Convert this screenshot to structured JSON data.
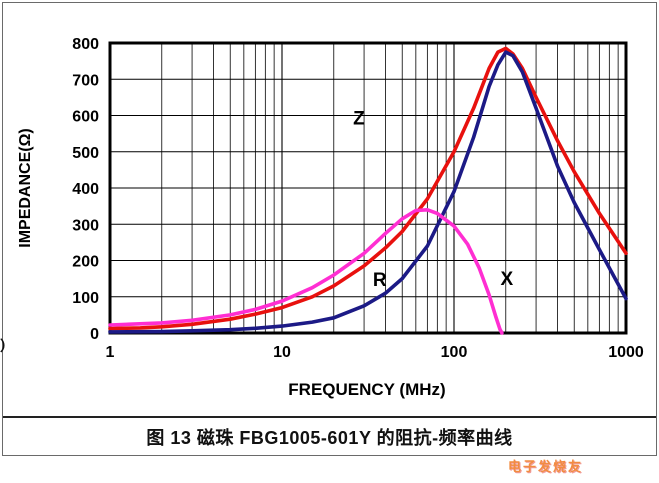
{
  "figure": {
    "caption": "图 13 磁珠 FBG1005-601Y 的阻抗-频率曲线",
    "watermark": "电子发烧友",
    "left_edge_fragment": "）"
  },
  "chart_data": {
    "type": "line",
    "title": "",
    "xlabel": "FREQUENCY (MHz)",
    "ylabel": "IMPEDANCE(Ω)",
    "x_scale": "log",
    "xlim": [
      1,
      1000
    ],
    "ylim": [
      0,
      800
    ],
    "x_ticks": [
      1,
      10,
      100,
      1000
    ],
    "y_ticks": [
      0,
      100,
      200,
      300,
      400,
      500,
      600,
      700,
      800
    ],
    "grid": true,
    "legend_position": "inline-labels",
    "series": [
      {
        "name": "Z",
        "color": "#e8110e",
        "label_at": [
          28,
          575
        ],
        "points": [
          [
            1,
            12
          ],
          [
            1.5,
            14
          ],
          [
            2,
            17
          ],
          [
            3,
            24
          ],
          [
            5,
            38
          ],
          [
            7,
            52
          ],
          [
            10,
            70
          ],
          [
            15,
            100
          ],
          [
            20,
            130
          ],
          [
            30,
            185
          ],
          [
            40,
            235
          ],
          [
            50,
            280
          ],
          [
            70,
            370
          ],
          [
            100,
            500
          ],
          [
            130,
            620
          ],
          [
            160,
            730
          ],
          [
            180,
            775
          ],
          [
            200,
            785
          ],
          [
            220,
            770
          ],
          [
            250,
            730
          ],
          [
            300,
            650
          ],
          [
            400,
            530
          ],
          [
            500,
            445
          ],
          [
            700,
            330
          ],
          [
            1000,
            220
          ]
        ]
      },
      {
        "name": "R",
        "color": "#1c1a86",
        "label_at": [
          37,
          130
        ],
        "points": [
          [
            1,
            3
          ],
          [
            2,
            4
          ],
          [
            3,
            6
          ],
          [
            5,
            9
          ],
          [
            7,
            13
          ],
          [
            10,
            19
          ],
          [
            15,
            30
          ],
          [
            20,
            42
          ],
          [
            30,
            75
          ],
          [
            40,
            110
          ],
          [
            50,
            150
          ],
          [
            70,
            240
          ],
          [
            100,
            390
          ],
          [
            130,
            540
          ],
          [
            160,
            680
          ],
          [
            180,
            740
          ],
          [
            200,
            775
          ],
          [
            220,
            765
          ],
          [
            250,
            720
          ],
          [
            300,
            620
          ],
          [
            400,
            460
          ],
          [
            500,
            360
          ],
          [
            700,
            230
          ],
          [
            1000,
            95
          ]
        ]
      },
      {
        "name": "X",
        "color": "#ff2ed2",
        "label_at": [
          203,
          132
        ],
        "points": [
          [
            1,
            22
          ],
          [
            2,
            28
          ],
          [
            3,
            35
          ],
          [
            5,
            50
          ],
          [
            7,
            65
          ],
          [
            10,
            88
          ],
          [
            15,
            125
          ],
          [
            20,
            160
          ],
          [
            30,
            220
          ],
          [
            40,
            275
          ],
          [
            50,
            315
          ],
          [
            60,
            338
          ],
          [
            70,
            340
          ],
          [
            80,
            330
          ],
          [
            100,
            295
          ],
          [
            120,
            245
          ],
          [
            140,
            180
          ],
          [
            160,
            105
          ],
          [
            175,
            45
          ],
          [
            185,
            10
          ],
          [
            190,
            0
          ]
        ]
      }
    ]
  }
}
